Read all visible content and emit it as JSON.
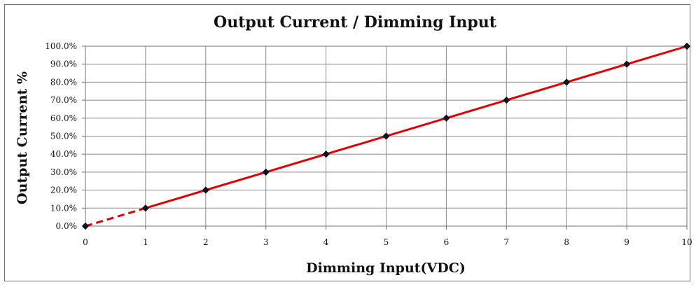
{
  "chart_data": {
    "type": "line",
    "title": "Output Current / Dimming Input",
    "xlabel": "Dimming Input(VDC)",
    "ylabel": "Output Current %",
    "x": [
      0,
      1,
      2,
      3,
      4,
      5,
      6,
      7,
      8,
      9,
      10
    ],
    "series": [
      {
        "values": [
          0,
          10,
          20,
          30,
          40,
          50,
          60,
          70,
          80,
          90,
          100
        ]
      }
    ],
    "x_ticks": [
      "0",
      "1",
      "2",
      "3",
      "4",
      "5",
      "6",
      "7",
      "8",
      "9",
      "10"
    ],
    "y_ticks": [
      "0.0%",
      "10.0%",
      "20.0%",
      "30.0%",
      "40.0%",
      "50.0%",
      "60.0%",
      "70.0%",
      "80.0%",
      "90.0%",
      "100.0%"
    ],
    "xlim": [
      0,
      10
    ],
    "ylim": [
      0,
      100
    ],
    "grid": true,
    "colors": {
      "line": "#e00000",
      "marker": "#0b1530",
      "grid": "#8a8a8a"
    },
    "annotations": {
      "dashed_segment_between_x": [
        0,
        1
      ]
    }
  }
}
